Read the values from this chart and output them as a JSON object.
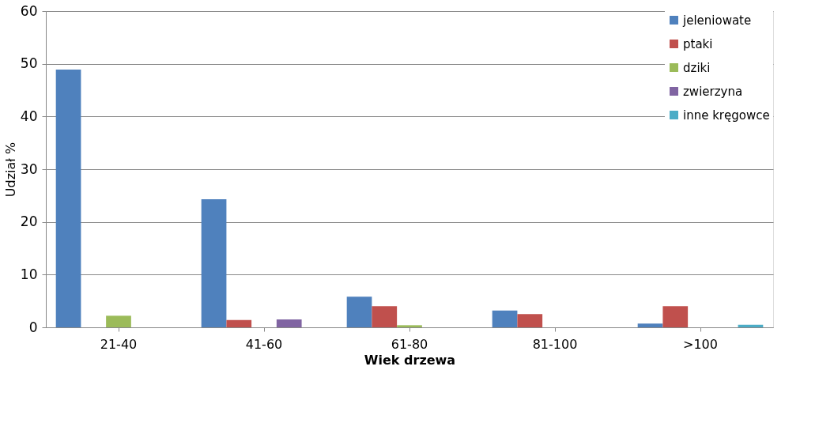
{
  "chart_data": {
    "type": "bar",
    "xlabel": "Wiek drzewa",
    "ylabel": "Udział %",
    "categories": [
      "21-40",
      "41-60",
      "61-80",
      "81-100",
      ">100"
    ],
    "series": [
      {
        "name": "jeleniowate",
        "color": "#4f81bd",
        "values": [
          48.9,
          24.3,
          5.8,
          3.2,
          0.7
        ]
      },
      {
        "name": "ptaki",
        "color": "#c0504d",
        "values": [
          0,
          1.4,
          4.0,
          2.5,
          4.0
        ]
      },
      {
        "name": "dziki",
        "color": "#9bbb59",
        "values": [
          2.2,
          0,
          0.4,
          0,
          0
        ]
      },
      {
        "name": "zwierzyna",
        "color": "#8064a2",
        "values": [
          0,
          1.5,
          0,
          0,
          0
        ]
      },
      {
        "name": "inne kręgowce",
        "color": "#4bacc6",
        "values": [
          0,
          0,
          0,
          0,
          0.5
        ]
      }
    ],
    "ylim": [
      0,
      60
    ],
    "yticks": [
      0,
      10,
      20,
      30,
      40,
      50,
      60
    ],
    "grid": "y",
    "legend": "top right"
  }
}
